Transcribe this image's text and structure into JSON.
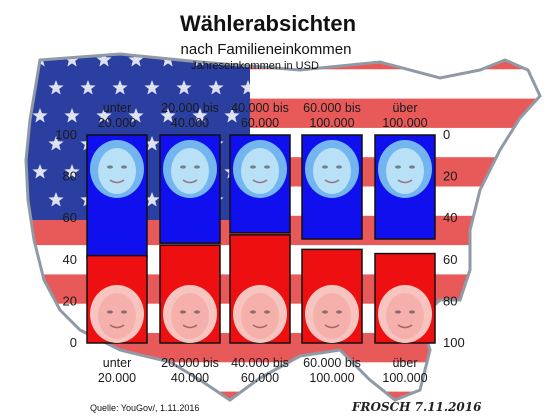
{
  "header": {
    "title": "Wählerabsichten",
    "subtitle": "nach Familieneinkommen",
    "unit_label": "Jahreseinkommen in USD"
  },
  "footer": {
    "source": "Quelle: YouGov/, 1.11.2016",
    "signature": "FROSCH 7.11.2016"
  },
  "colors": {
    "clinton": "#1010ee",
    "trump": "#ee1010",
    "flag_red": "#e85a5a",
    "flag_blue": "#2a3fa0",
    "map_outline": "#8f9aa6"
  },
  "chart_data": {
    "type": "bar",
    "categories": [
      [
        "unter",
        "20.000"
      ],
      [
        "20.000 bis",
        "40.000"
      ],
      [
        "40.000 bis",
        "60.000"
      ],
      [
        "60.000 bis",
        "100.000"
      ],
      [
        "über",
        "100.000"
      ]
    ],
    "series": [
      {
        "values": [
          59,
          52,
          47,
          50,
          50
        ],
        "direction": "down-from-top",
        "color": "#1010ee"
      },
      {
        "values": [
          42,
          47,
          52,
          45,
          43
        ],
        "direction": "up-from-bottom",
        "color": "#ee1010"
      }
    ],
    "left_axis": {
      "ticks": [
        0,
        20,
        40,
        60,
        80,
        100
      ],
      "ylim": [
        0,
        100
      ]
    },
    "right_axis": {
      "ticks": [
        0,
        20,
        40,
        60,
        80,
        100
      ],
      "ylim": [
        0,
        100
      ],
      "inverted": true
    },
    "grid": false,
    "legend": "none"
  }
}
